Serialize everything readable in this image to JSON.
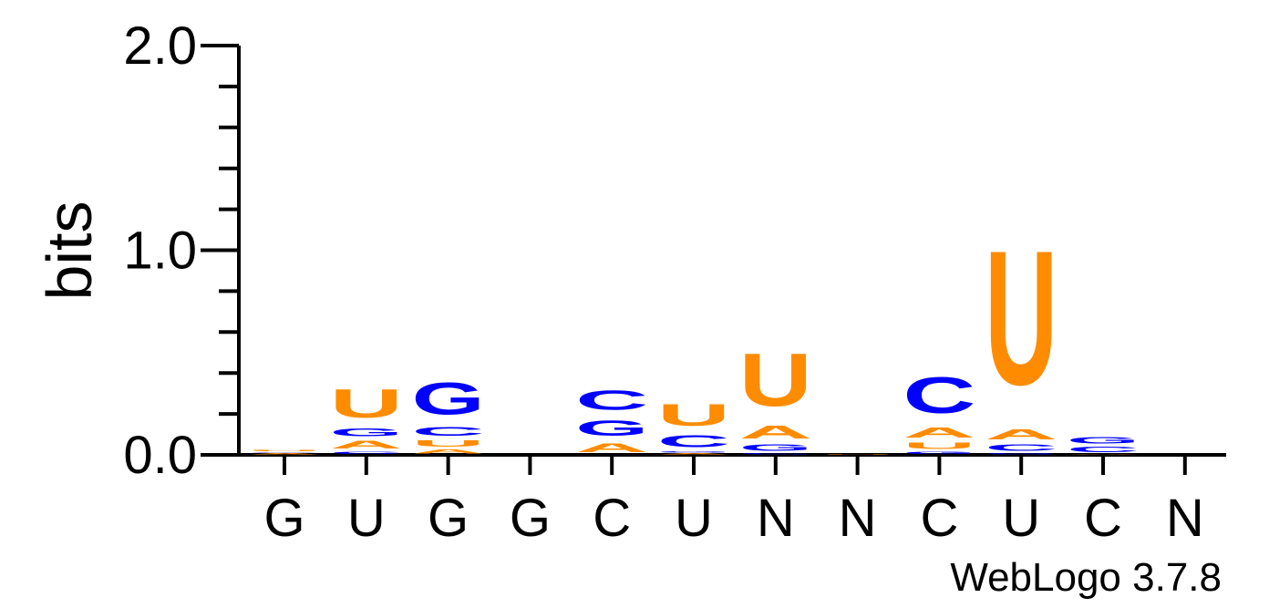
{
  "chart_data": {
    "type": "sequence-logo",
    "ylabel": "bits",
    "ylim": [
      0,
      2.0
    ],
    "y_ticks": [
      "0.0",
      "1.0",
      "2.0"
    ],
    "x_labels": [
      "G",
      "U",
      "G",
      "G",
      "C",
      "U",
      "N",
      "N",
      "C",
      "U",
      "C",
      "N"
    ],
    "footer": "WebLogo 3.7.8",
    "colors": {
      "A": "#ff8c00",
      "U": "#ff8c00",
      "G": "#0000ff",
      "C": "#0000ff"
    },
    "positions": [
      {
        "stack": [
          {
            "letter": "A",
            "bits": 0.01
          },
          {
            "letter": "C",
            "bits": 0.005
          },
          {
            "letter": "U",
            "bits": 0.01
          }
        ]
      },
      {
        "stack": [
          {
            "letter": "C",
            "bits": 0.02
          },
          {
            "letter": "A",
            "bits": 0.06
          },
          {
            "letter": "G",
            "bits": 0.06
          },
          {
            "letter": "U",
            "bits": 0.22
          }
        ]
      },
      {
        "stack": [
          {
            "letter": "A",
            "bits": 0.03
          },
          {
            "letter": "U",
            "bits": 0.05
          },
          {
            "letter": "C",
            "bits": 0.07
          },
          {
            "letter": "G",
            "bits": 0.25
          }
        ]
      },
      {
        "stack": []
      },
      {
        "stack": [
          {
            "letter": "A",
            "bits": 0.07
          },
          {
            "letter": "G",
            "bits": 0.12
          },
          {
            "letter": "C",
            "bits": 0.15
          }
        ]
      },
      {
        "stack": [
          {
            "letter": "A",
            "bits": 0.01
          },
          {
            "letter": "G",
            "bits": 0.01
          },
          {
            "letter": "C",
            "bits": 0.09
          },
          {
            "letter": "U",
            "bits": 0.17
          }
        ]
      },
      {
        "stack": [
          {
            "letter": "C",
            "bits": 0.01
          },
          {
            "letter": "G",
            "bits": 0.05
          },
          {
            "letter": "A",
            "bits": 0.1
          },
          {
            "letter": "U",
            "bits": 0.41
          }
        ]
      },
      {
        "stack": [
          {
            "letter": "U",
            "bits": 0.005
          }
        ]
      },
      {
        "stack": [
          {
            "letter": "G",
            "bits": 0.02
          },
          {
            "letter": "U",
            "bits": 0.05
          },
          {
            "letter": "A",
            "bits": 0.08
          },
          {
            "letter": "C",
            "bits": 0.28
          }
        ]
      },
      {
        "stack": [
          {
            "letter": "G",
            "bits": 0.01
          },
          {
            "letter": "C",
            "bits": 0.05
          },
          {
            "letter": "A",
            "bits": 0.08
          },
          {
            "letter": "U",
            "bits": 1.05
          }
        ]
      },
      {
        "stack": [
          {
            "letter": "A",
            "bits": 0.005
          },
          {
            "letter": "C",
            "bits": 0.04
          },
          {
            "letter": "G",
            "bits": 0.05
          }
        ]
      },
      {
        "stack": []
      }
    ]
  }
}
